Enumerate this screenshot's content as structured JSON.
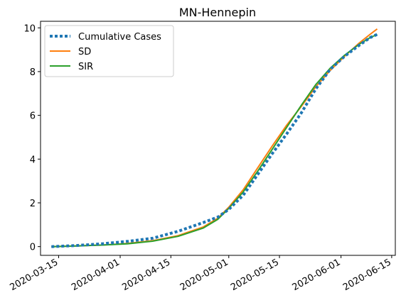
{
  "chart_data": {
    "type": "line",
    "title": "MN-Hennepin",
    "xlabel": "",
    "ylabel": "",
    "x_type": "date",
    "xlim": [
      "2020-03-10",
      "2020-06-16"
    ],
    "ylim": [
      -0.4,
      10.3
    ],
    "y_ticks": [
      0,
      2,
      4,
      6,
      8,
      10
    ],
    "x_ticks": [
      "2020-03-15",
      "2020-04-01",
      "2020-04-15",
      "2020-05-01",
      "2020-05-15",
      "2020-06-01",
      "2020-06-15"
    ],
    "legend": {
      "placement": "top-left",
      "frame": true
    },
    "grid": false,
    "series": [
      {
        "name": "Cumulative Cases",
        "style": "dotted",
        "color": "#1f77b4",
        "x": [
          "2020-03-13",
          "2020-03-20",
          "2020-03-27",
          "2020-04-03",
          "2020-04-10",
          "2020-04-17",
          "2020-04-24",
          "2020-04-28",
          "2020-05-01",
          "2020-05-05",
          "2020-05-09",
          "2020-05-13",
          "2020-05-17",
          "2020-05-21",
          "2020-05-25",
          "2020-05-29",
          "2020-06-02",
          "2020-06-06",
          "2020-06-09",
          "2020-06-11"
        ],
        "values": [
          0.0,
          0.05,
          0.13,
          0.24,
          0.38,
          0.7,
          1.1,
          1.35,
          1.7,
          2.35,
          3.3,
          4.25,
          5.15,
          6.1,
          7.2,
          8.1,
          8.7,
          9.2,
          9.55,
          9.7
        ]
      },
      {
        "name": "SD",
        "style": "solid",
        "color": "#ff7f0e",
        "x": [
          "2020-03-13",
          "2020-03-20",
          "2020-03-27",
          "2020-04-03",
          "2020-04-10",
          "2020-04-17",
          "2020-04-24",
          "2020-04-28",
          "2020-05-01",
          "2020-05-05",
          "2020-05-09",
          "2020-05-13",
          "2020-05-17",
          "2020-05-21",
          "2020-05-25",
          "2020-05-29",
          "2020-06-02",
          "2020-06-06",
          "2020-06-09",
          "2020-06-11"
        ],
        "values": [
          0.0,
          0.03,
          0.07,
          0.14,
          0.27,
          0.5,
          0.9,
          1.3,
          1.8,
          2.6,
          3.6,
          4.6,
          5.55,
          6.4,
          7.3,
          8.05,
          8.7,
          9.3,
          9.7,
          9.95
        ]
      },
      {
        "name": "SIR",
        "style": "solid",
        "color": "#2ca02c",
        "x": [
          "2020-03-13",
          "2020-03-20",
          "2020-03-27",
          "2020-04-03",
          "2020-04-10",
          "2020-04-17",
          "2020-04-24",
          "2020-04-28",
          "2020-05-01",
          "2020-05-05",
          "2020-05-09",
          "2020-05-13",
          "2020-05-17",
          "2020-05-21",
          "2020-05-25",
          "2020-05-29",
          "2020-06-02",
          "2020-06-06",
          "2020-06-09",
          "2020-06-11"
        ],
        "values": [
          0.0,
          0.03,
          0.07,
          0.13,
          0.25,
          0.47,
          0.85,
          1.25,
          1.75,
          2.5,
          3.45,
          4.45,
          5.45,
          6.45,
          7.4,
          8.15,
          8.75,
          9.25,
          9.55,
          9.7
        ]
      }
    ]
  }
}
